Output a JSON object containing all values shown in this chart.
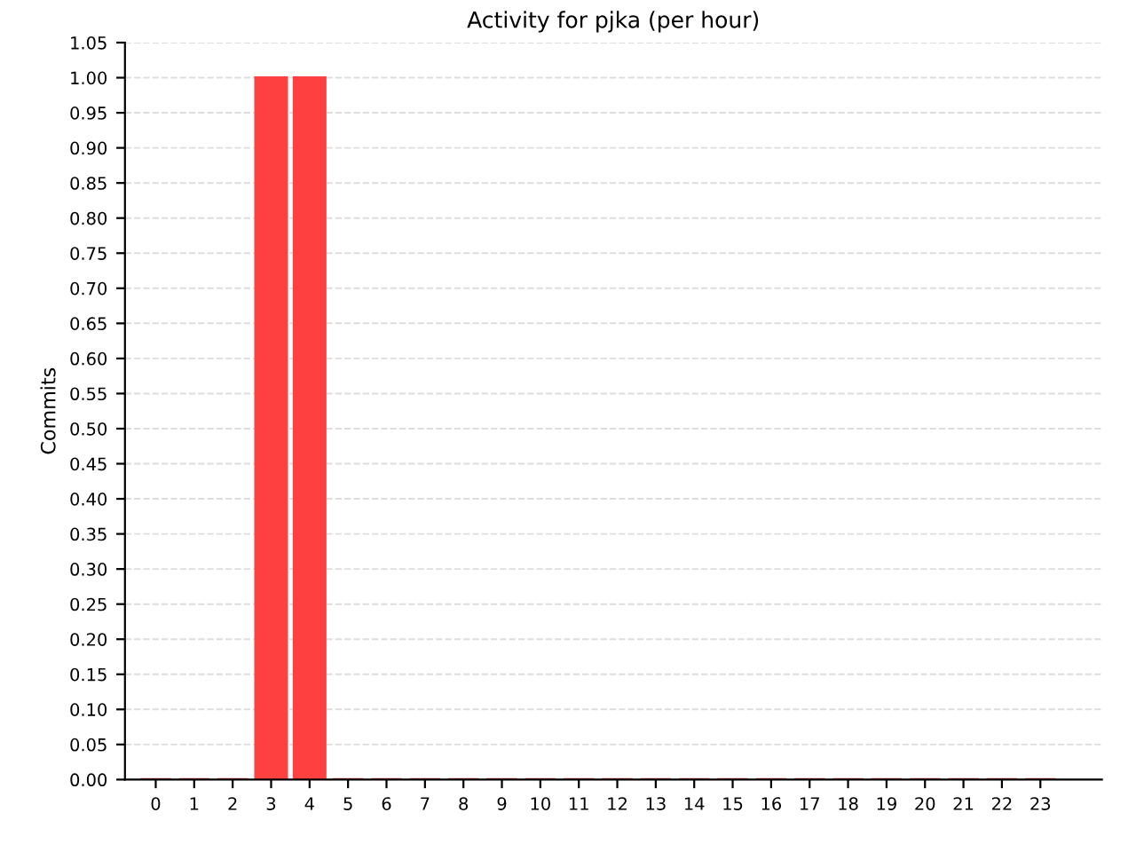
{
  "chart_data": {
    "type": "bar",
    "title": "Activity for pjka (per hour)",
    "ylabel": "Commits",
    "categories": [
      "0",
      "1",
      "2",
      "3",
      "4",
      "5",
      "6",
      "7",
      "8",
      "9",
      "10",
      "11",
      "12",
      "13",
      "14",
      "15",
      "16",
      "17",
      "18",
      "19",
      "20",
      "21",
      "22",
      "23"
    ],
    "values": [
      0,
      0,
      0,
      1,
      1,
      0,
      0,
      0,
      0,
      0,
      0,
      0,
      0,
      0,
      0,
      0,
      0,
      0,
      0,
      0,
      0,
      0,
      0,
      0
    ],
    "color": "#ff4040",
    "ylim": [
      0,
      1.05
    ],
    "yticks": [
      {
        "value": 0,
        "label": "0.00"
      },
      0.05,
      {
        "value": 0.1,
        "label": "0.10"
      },
      0.15,
      {
        "value": 0.2,
        "label": "0.20"
      },
      0.25,
      {
        "value": 0.3,
        "label": "0.30"
      },
      0.35,
      {
        "value": 0.4,
        "label": "0.40"
      },
      0.45,
      {
        "value": 0.5,
        "label": "0.50"
      },
      0.55,
      {
        "value": 0.6,
        "label": "0.60"
      },
      0.65,
      {
        "value": 0.7,
        "label": "0.70"
      },
      0.75,
      {
        "value": 0.8,
        "label": "0.80"
      },
      0.85,
      {
        "value": 0.9,
        "label": "0.90"
      },
      0.95,
      {
        "value": 1,
        "label": "1.00"
      },
      1.05
    ],
    "grid": "y"
  }
}
